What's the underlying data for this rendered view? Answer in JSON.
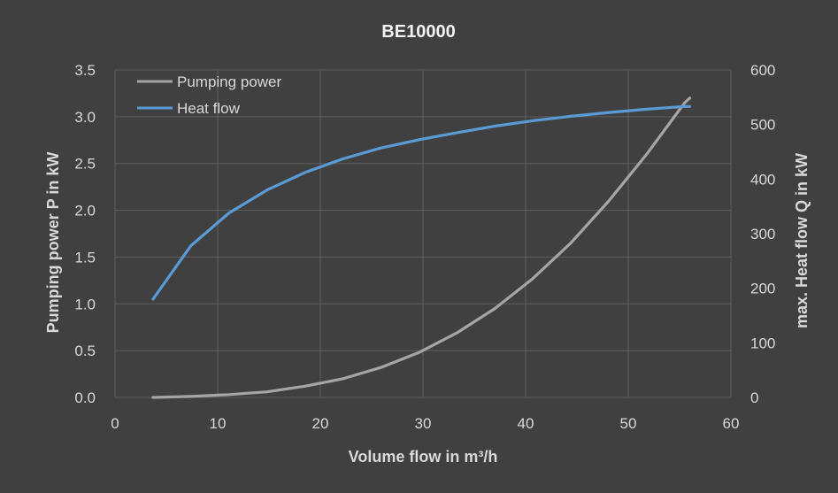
{
  "chart_data": {
    "type": "line",
    "title": "BE10000",
    "xlabel": "Volume flow in m³/h",
    "ylabel": "Pumping power P in kW",
    "y2label": "max. Heat flow Q in kW",
    "xlim": [
      0,
      60
    ],
    "ylim": [
      0,
      3.5
    ],
    "y2lim": [
      0,
      600
    ],
    "x_ticks": [
      "0",
      "10",
      "20",
      "30",
      "40",
      "50",
      "60"
    ],
    "y_ticks": [
      "0.0",
      "0.5",
      "1.0",
      "1.5",
      "2.0",
      "2.5",
      "3.0",
      "3.5"
    ],
    "y2_ticks": [
      "0",
      "100",
      "200",
      "300",
      "400",
      "500",
      "600"
    ],
    "grid": true,
    "legend_position": "top-left",
    "series": [
      {
        "name": "Pumping power",
        "axis": "left",
        "color": "#a5a5a5",
        "x": [
          3.7,
          7.4,
          11.1,
          14.8,
          18.5,
          22.2,
          25.9,
          29.6,
          33.3,
          37.0,
          40.7,
          44.4,
          48.1,
          51.8,
          55.5,
          56
        ],
        "y": [
          0.0,
          0.01,
          0.03,
          0.06,
          0.12,
          0.2,
          0.32,
          0.48,
          0.69,
          0.95,
          1.27,
          1.65,
          2.1,
          2.6,
          3.15,
          3.2
        ]
      },
      {
        "name": "Heat flow",
        "axis": "right",
        "color": "#5b9bd5",
        "x": [
          3.7,
          7.4,
          11.1,
          14.8,
          18.5,
          22.2,
          25.9,
          29.6,
          33.3,
          37.0,
          40.7,
          44.4,
          48.1,
          51.8,
          55.5,
          56
        ],
        "y": [
          180,
          278,
          338,
          380,
          412,
          437,
          457,
          472,
          485,
          497,
          507,
          515,
          522,
          528,
          533,
          533
        ]
      }
    ]
  }
}
